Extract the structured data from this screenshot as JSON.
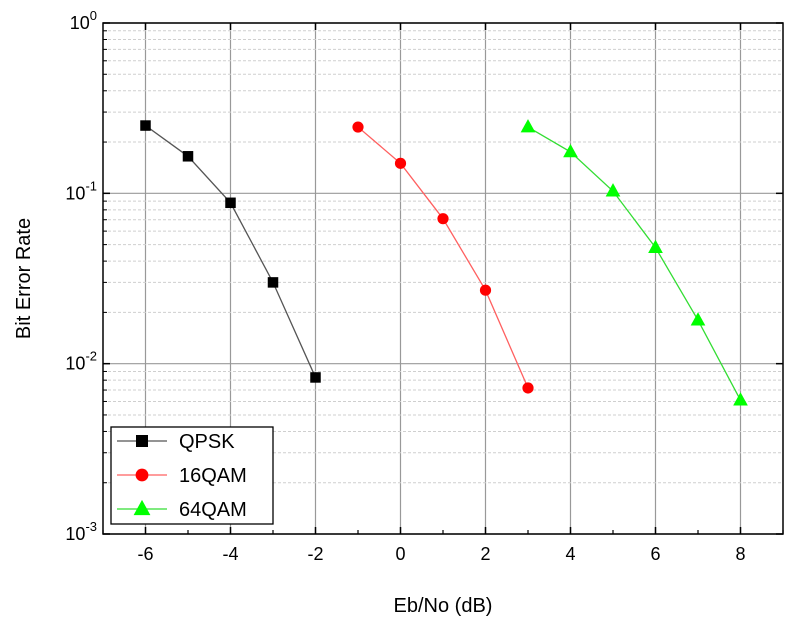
{
  "chart_data": {
    "type": "line",
    "title": "",
    "xlabel": "Eb/No (dB)",
    "ylabel": "Bit Error Rate",
    "xlim": [
      -7,
      9
    ],
    "ylim": [
      0.001,
      1
    ],
    "yscale": "log",
    "grid": true,
    "legend_position": "bottom-left",
    "x_ticks": [
      -6,
      -4,
      -2,
      0,
      2,
      4,
      6,
      8
    ],
    "x_tick_labels": [
      "-6",
      "-4",
      "-2",
      "0",
      "2",
      "4",
      "6",
      "8"
    ],
    "y_ticks": [
      0.001,
      0.01,
      0.1,
      1
    ],
    "y_tick_labels": [
      {
        "base": "10",
        "exp": "-3"
      },
      {
        "base": "10",
        "exp": "-2"
      },
      {
        "base": "10",
        "exp": "-1"
      },
      {
        "base": "10",
        "exp": "0"
      }
    ],
    "series": [
      {
        "name": "QPSK",
        "color": "#000000",
        "line_color": "#555555",
        "marker": "square",
        "x": [
          -6,
          -5,
          -4,
          -3,
          -2
        ],
        "y": [
          0.25,
          0.165,
          0.088,
          0.03,
          0.0083
        ]
      },
      {
        "name": "16QAM",
        "color": "#ff0000",
        "line_color": "#ff6060",
        "marker": "circle",
        "x": [
          -1,
          0,
          1,
          2,
          3
        ],
        "y": [
          0.245,
          0.15,
          0.071,
          0.027,
          0.0072
        ]
      },
      {
        "name": "64QAM",
        "color": "#00ff00",
        "line_color": "#33dd33",
        "marker": "triangle",
        "x": [
          3,
          4,
          5,
          6,
          7,
          8
        ],
        "y": [
          0.245,
          0.175,
          0.103,
          0.048,
          0.018,
          0.0061
        ]
      }
    ]
  }
}
